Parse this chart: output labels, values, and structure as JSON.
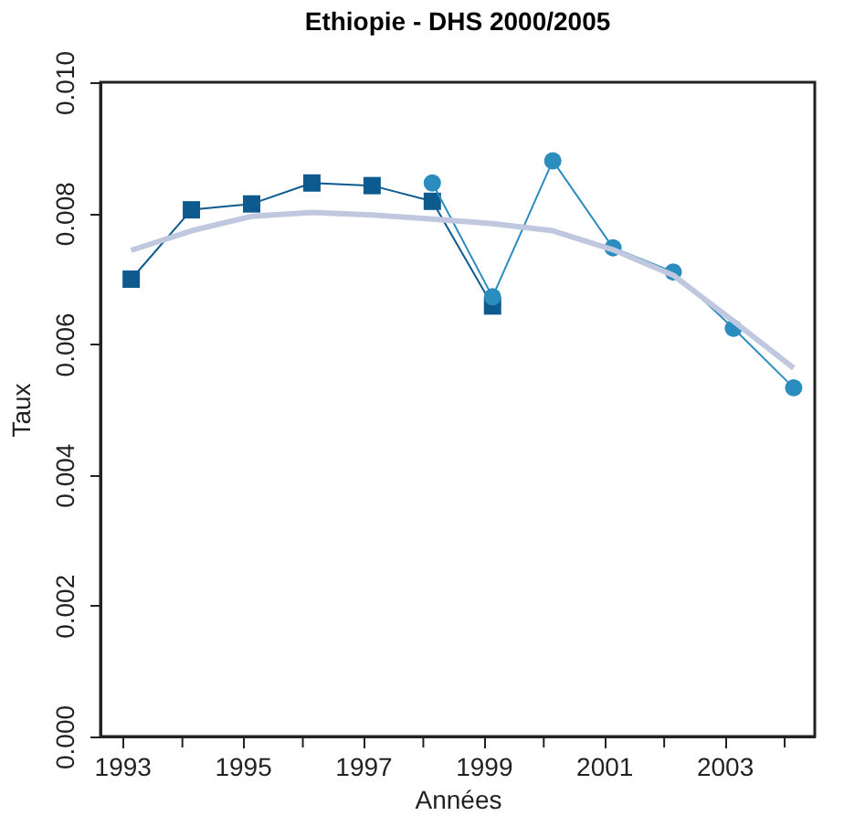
{
  "chart_data": {
    "type": "line",
    "title": "Ethiopie - DHS 2000/2005",
    "xlabel": "Années",
    "ylabel": "Taux",
    "xlim": [
      1992.64,
      2004.5
    ],
    "xticks": [
      1993,
      {
        "value": 1994,
        "label": null
      },
      1995,
      {
        "value": 1996,
        "label": null
      },
      1997,
      {
        "value": 1998,
        "label": null
      },
      1999,
      {
        "value": 2000,
        "label": null
      },
      2001,
      {
        "value": 2002,
        "label": null
      },
      2003,
      {
        "value": 2004,
        "label": null
      }
    ],
    "ylim": [
      0,
      0.01
    ],
    "yticks": [
      {
        "value": 0,
        "label": "0.000"
      },
      {
        "value": 0.002,
        "label": "0.002"
      },
      {
        "value": 0.004,
        "label": "0.004"
      },
      {
        "value": 0.006,
        "label": "0.006"
      },
      {
        "value": 0.008,
        "label": "0.008"
      },
      {
        "value": 0.01,
        "label": "0.010"
      }
    ],
    "grid": false,
    "series": [
      {
        "color": "#0d5a8f",
        "marker": "square",
        "x": [
          1993.15,
          1994.15,
          1995.15,
          1996.15,
          1997.15,
          1998.15,
          1999.15
        ],
        "values": [
          0.00699,
          0.00805,
          0.00814,
          0.00846,
          0.00842,
          0.00818,
          0.00658
        ]
      },
      {
        "color": "#2b8cbe",
        "marker": "circle",
        "x": [
          1998.15,
          1999.15,
          2000.15,
          2001.15,
          2002.15,
          2003.15,
          2004.15
        ],
        "values": [
          0.00846,
          0.00672,
          0.0088,
          0.00747,
          0.0071,
          0.00624,
          0.00533
        ]
      },
      {
        "color": "#c0c8e0",
        "marker": "none",
        "x": [
          1993.15,
          1994.15,
          1995.15,
          1996.15,
          1997.15,
          1998.15,
          1999.15,
          2000.15,
          2001.15,
          2002.15,
          2003.15,
          2004.15
        ],
        "values": [
          0.00743,
          0.00773,
          0.00795,
          0.00801,
          0.00797,
          0.00791,
          0.00784,
          0.00773,
          0.00744,
          0.00705,
          0.00635,
          0.00563
        ]
      }
    ]
  }
}
